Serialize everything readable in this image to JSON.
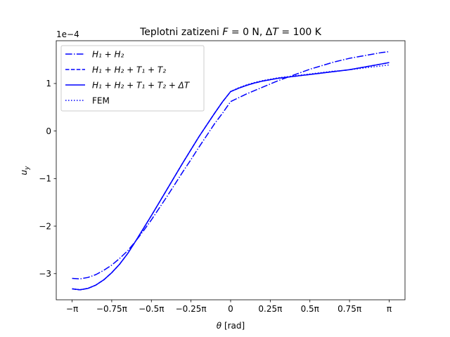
{
  "chart_data": {
    "type": "line",
    "title": "Teplotni zatizeni  F = 0 N, ΔT = 100 K",
    "xlabel": "θ [rad]",
    "ylabel": "u_y",
    "y_offset_label": "1e−4",
    "xlim": [
      -3.4558,
      3.4558
    ],
    "ylim": [
      -3.55,
      1.9
    ],
    "y_scale_factor": 0.0001,
    "x_ticks": [
      -3.14159,
      -2.35619,
      -1.5708,
      -0.7854,
      0,
      0.7854,
      1.5708,
      2.35619,
      3.14159
    ],
    "x_tick_labels": [
      "−π",
      "−0.75π",
      "−0.5π",
      "−0.25π",
      "0",
      "0.25π",
      "0.5π",
      "0.75π",
      "π"
    ],
    "y_ticks": [
      -3,
      -2,
      -1,
      0,
      1
    ],
    "y_tick_labels": [
      "−3",
      "−2",
      "−1",
      "0",
      "1"
    ],
    "grid": false,
    "legend_position": "upper left",
    "colors": {
      "series": "#0000ff"
    },
    "x": [
      -3.14159,
      -2.98451,
      -2.82743,
      -2.67035,
      -2.51327,
      -2.35619,
      -2.19911,
      -2.04204,
      -1.88496,
      -1.72788,
      -1.5708,
      -1.41372,
      -1.25664,
      -1.09956,
      -0.94248,
      -0.7854,
      -0.62832,
      -0.47124,
      -0.31416,
      -0.15708,
      0,
      0.15708,
      0.31416,
      0.47124,
      0.62832,
      0.7854,
      0.94248,
      1.09956,
      1.25664,
      1.41372,
      1.5708,
      1.72788,
      1.88496,
      2.04204,
      2.19911,
      2.35619,
      2.51327,
      2.67035,
      2.82743,
      2.98451,
      3.14159
    ],
    "series": [
      {
        "name": "H1 + H2",
        "legend_label": "H₁ + H₂",
        "linestyle": "dashdot",
        "values": [
          -3.1,
          -3.11,
          -3.08,
          -3.02,
          -2.93,
          -2.82,
          -2.68,
          -2.52,
          -2.32,
          -2.1,
          -1.87,
          -1.62,
          -1.37,
          -1.11,
          -0.85,
          -0.6,
          -0.34,
          -0.09,
          0.16,
          0.38,
          0.62,
          0.7,
          0.78,
          0.85,
          0.92,
          0.99,
          1.06,
          1.12,
          1.18,
          1.24,
          1.3,
          1.35,
          1.4,
          1.45,
          1.49,
          1.53,
          1.56,
          1.59,
          1.62,
          1.65,
          1.67
        ]
      },
      {
        "name": "H1 + H2 + T1 + T2",
        "legend_label": "H₁ + H₂ + T₁ + T₂",
        "linestyle": "dashed",
        "values": [
          -3.32,
          -3.34,
          -3.31,
          -3.24,
          -3.13,
          -2.98,
          -2.8,
          -2.58,
          -2.32,
          -2.05,
          -1.78,
          -1.5,
          -1.22,
          -0.94,
          -0.66,
          -0.39,
          -0.12,
          0.13,
          0.38,
          0.62,
          0.83,
          0.9,
          0.96,
          1.01,
          1.05,
          1.08,
          1.11,
          1.13,
          1.15,
          1.17,
          1.19,
          1.21,
          1.23,
          1.25,
          1.27,
          1.29,
          1.32,
          1.35,
          1.38,
          1.41,
          1.44
        ]
      },
      {
        "name": "H1 + H2 + T1 + T2 + ΔT",
        "legend_label": "H₁ + H₂ + T₁ + T₂ + ΔT",
        "linestyle": "solid",
        "values": [
          -3.32,
          -3.34,
          -3.31,
          -3.24,
          -3.13,
          -2.98,
          -2.8,
          -2.58,
          -2.32,
          -2.05,
          -1.78,
          -1.5,
          -1.22,
          -0.94,
          -0.66,
          -0.39,
          -0.12,
          0.13,
          0.38,
          0.62,
          0.83,
          0.9,
          0.96,
          1.01,
          1.05,
          1.08,
          1.11,
          1.13,
          1.15,
          1.17,
          1.19,
          1.21,
          1.23,
          1.25,
          1.27,
          1.29,
          1.32,
          1.35,
          1.38,
          1.41,
          1.44
        ]
      },
      {
        "name": "FEM",
        "legend_label": "FEM",
        "linestyle": "dotted",
        "values": [
          -3.32,
          -3.34,
          -3.31,
          -3.24,
          -3.13,
          -2.98,
          -2.8,
          -2.58,
          -2.32,
          -2.05,
          -1.78,
          -1.5,
          -1.22,
          -0.94,
          -0.66,
          -0.39,
          -0.12,
          0.13,
          0.38,
          0.62,
          0.83,
          0.91,
          0.97,
          1.02,
          1.06,
          1.09,
          1.12,
          1.14,
          1.16,
          1.18,
          1.2,
          1.22,
          1.24,
          1.26,
          1.27,
          1.29,
          1.31,
          1.33,
          1.35,
          1.37,
          1.39
        ]
      }
    ]
  }
}
